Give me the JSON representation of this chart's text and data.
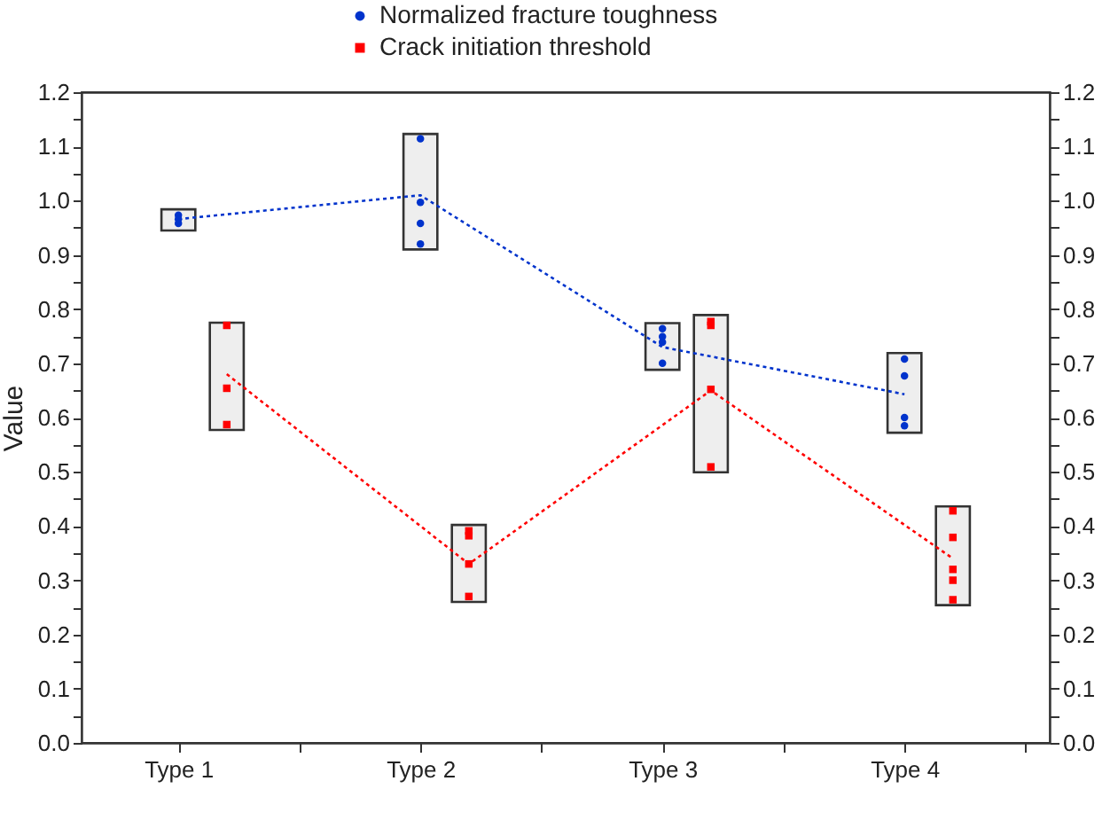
{
  "chart_data": {
    "type": "bar",
    "categories": [
      "Type 1",
      "Type 2",
      "Type 3",
      "Type 4"
    ],
    "ylabel": "Value",
    "legend": "top",
    "ylim": [
      0,
      1.2
    ],
    "yticks": [
      {
        "value": 0,
        "label": "0.0"
      },
      {
        "value": 0.05,
        "label": null
      },
      0.1,
      {
        "value": 0.15,
        "label": null
      },
      0.2,
      {
        "value": 0.25,
        "label": null
      },
      0.3,
      {
        "value": 0.35,
        "label": null
      },
      0.4,
      {
        "value": 0.45,
        "label": null
      },
      0.5,
      {
        "value": 0.55,
        "label": null
      },
      0.6,
      {
        "value": 0.65,
        "label": null
      },
      0.7,
      {
        "value": 0.75,
        "label": null
      },
      0.8,
      {
        "value": 0.85,
        "label": null
      },
      0.9,
      {
        "value": 0.95,
        "label": null
      },
      {
        "value": 1,
        "label": "1.0"
      },
      {
        "value": 1.05,
        "label": null
      },
      1.1,
      {
        "value": 1.15,
        "label": null
      },
      1.2
    ],
    "y2lim": [
      0,
      1.2
    ],
    "y2ticks": [
      {
        "value": 0,
        "label": "0.0"
      },
      {
        "value": 0.05,
        "label": null
      },
      0.1,
      {
        "value": 0.15,
        "label": null
      },
      0.2,
      {
        "value": 0.25,
        "label": null
      },
      0.3,
      {
        "value": 0.35,
        "label": null
      },
      0.4,
      {
        "value": 0.45,
        "label": null
      },
      0.5,
      {
        "value": 0.55,
        "label": null
      },
      0.6,
      {
        "value": 0.65,
        "label": null
      },
      0.7,
      {
        "value": 0.75,
        "label": null
      },
      0.8,
      {
        "value": 0.85,
        "label": null
      },
      0.9,
      {
        "value": 0.95,
        "label": null
      },
      {
        "value": 1,
        "label": "1.0"
      },
      {
        "value": 1.05,
        "label": null
      },
      1.1,
      {
        "value": 1.15,
        "label": null
      },
      1.2
    ],
    "series": [
      {
        "name": "Normalized fracture toughness",
        "type": "scatter",
        "marker": "circle",
        "color": "#0033cc",
        "x": [
          "Type 1",
          "Type 1",
          "Type 1",
          "Type 2",
          "Type 2",
          "Type 2",
          "Type 2",
          "Type 3",
          "Type 3",
          "Type 3",
          "Type 3",
          "Type 4",
          "Type 4",
          "Type 4",
          "Type 4"
        ],
        "values": [
          0.973,
          0.966,
          0.958,
          1.114,
          0.997,
          0.958,
          0.92,
          0.764,
          0.749,
          0.739,
          0.7,
          0.708,
          0.677,
          0.6,
          0.585
        ]
      },
      {
        "type": "bar",
        "color": "#eeeeee",
        "base": [
          0.945,
          0.91,
          0.688,
          0.572
        ],
        "values": [
          0.039,
          0.213,
          0.086,
          0.147
        ]
      },
      {
        "type": "line",
        "color": "#0033cc",
        "line_style": "dotted",
        "values": [
          0.966,
          1.01,
          0.73,
          0.643
        ]
      },
      {
        "name": "Crack initiation threshold",
        "type": "scatter",
        "marker": "square",
        "color": "#ff0000",
        "x": [
          "Type 1",
          "Type 1",
          "Type 1",
          "Type 2",
          "Type 2",
          "Type 2",
          "Type 2",
          "Type 3",
          "Type 3",
          "Type 3",
          "Type 3",
          "Type 4",
          "Type 4",
          "Type 4",
          "Type 4",
          "Type 4"
        ],
        "values": [
          0.77,
          0.654,
          0.587,
          0.391,
          0.382,
          0.33,
          0.27,
          0.777,
          0.77,
          0.652,
          0.509,
          0.428,
          0.379,
          0.32,
          0.3,
          0.264
        ]
      },
      {
        "type": "bar",
        "color": "#eeeeee",
        "base": [
          0.577,
          0.26,
          0.499,
          0.254
        ],
        "values": [
          0.198,
          0.142,
          0.29,
          0.182
        ]
      },
      {
        "type": "line",
        "color": "#ff0000",
        "line_style": "dotted",
        "values": [
          0.68,
          0.33,
          0.65,
          0.34
        ]
      }
    ]
  }
}
